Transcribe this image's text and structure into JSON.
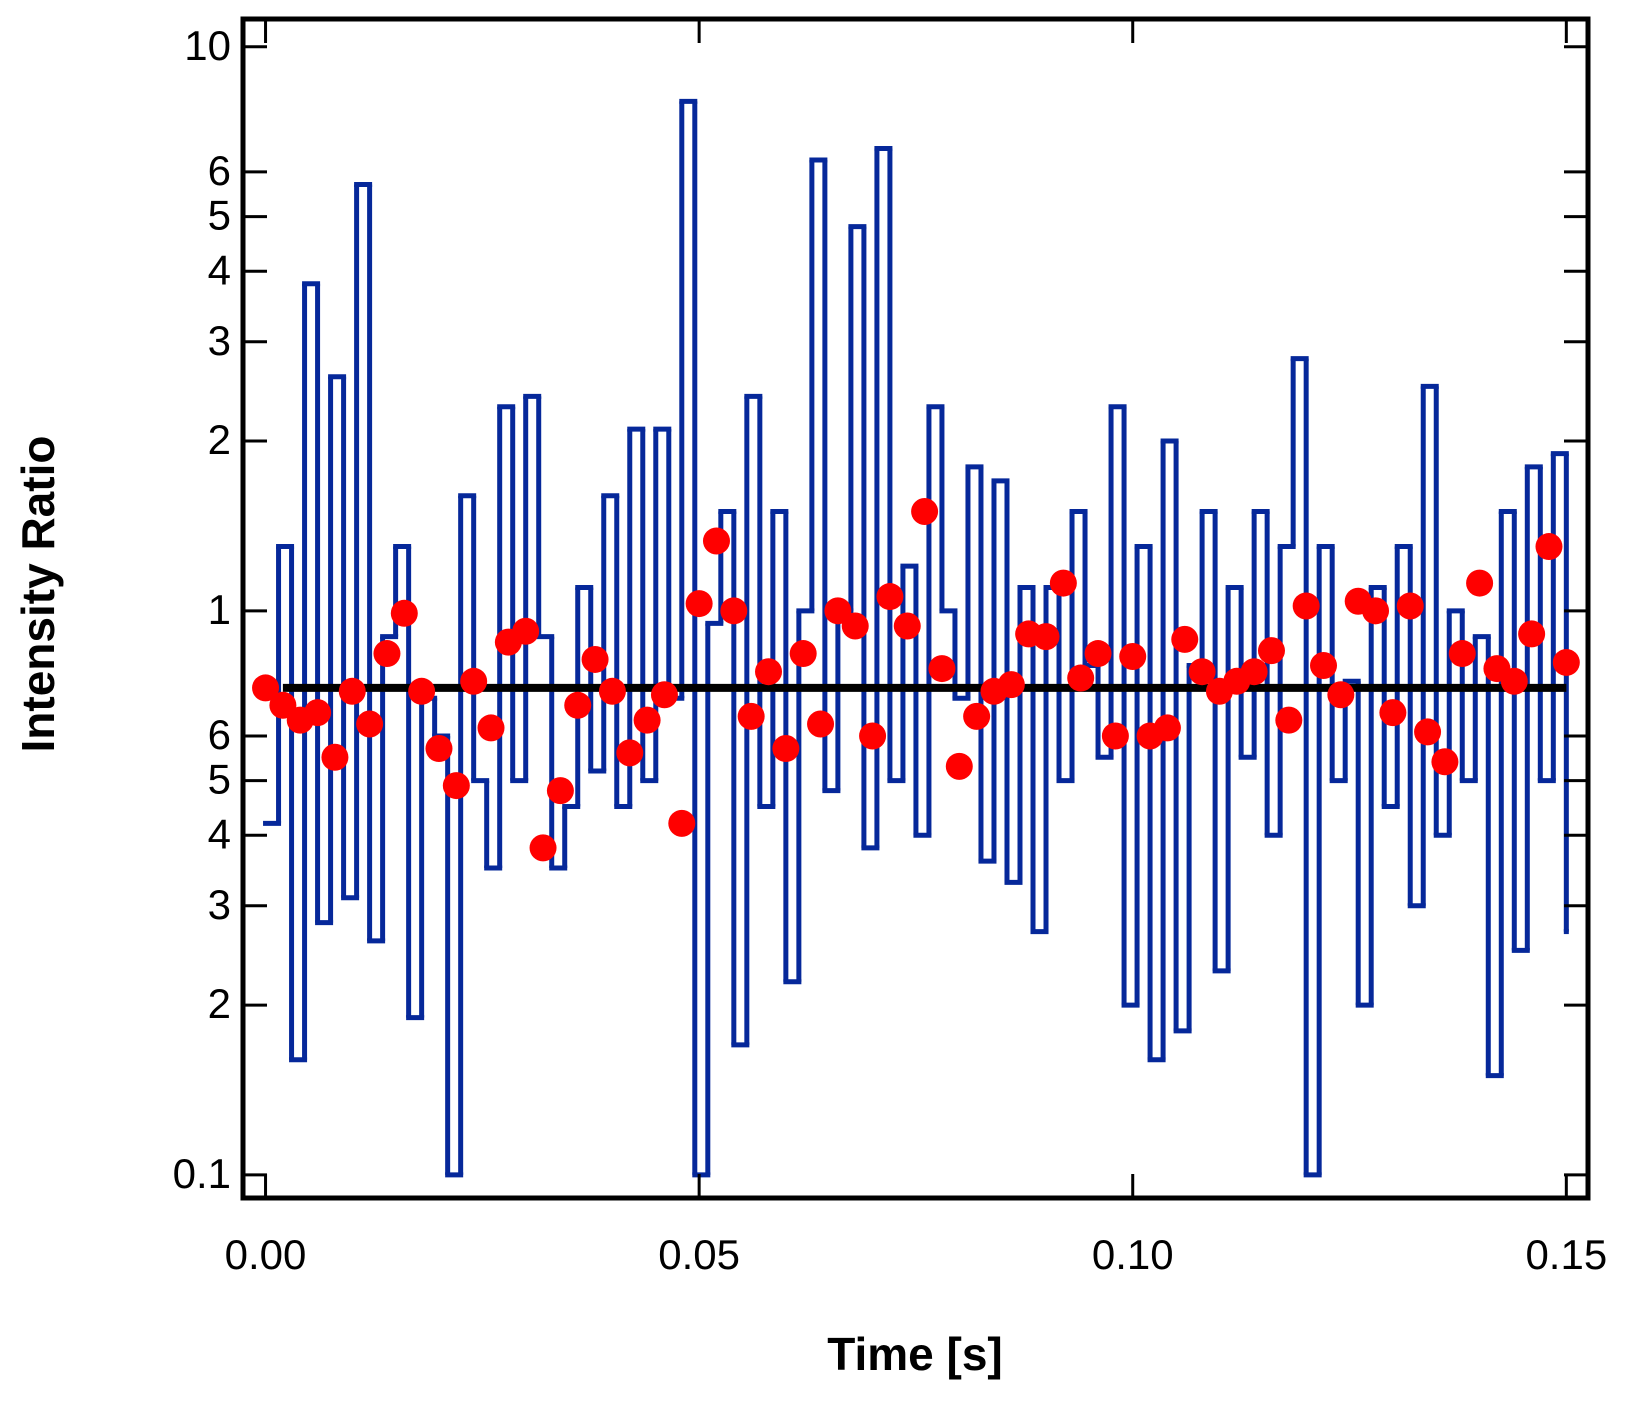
{
  "chart_data": {
    "type": "step-scatter",
    "x_label": "Time [s]",
    "y_label": "Intensity Ratio",
    "xlim": [
      -0.0026,
      0.1525
    ],
    "ylim": [
      0.091,
      11.2
    ],
    "yscale": "log",
    "xticks": [
      {
        "value": 0,
        "label": "0.00"
      },
      {
        "value": 0.05,
        "label": "0.05"
      },
      {
        "value": 0.1,
        "label": "0.10"
      },
      {
        "value": 0.15,
        "label": "0.15"
      }
    ],
    "yticks": [
      {
        "value": 0.1,
        "label": "0.1"
      },
      {
        "value": 0.2,
        "label": "2"
      },
      {
        "value": 0.3,
        "label": "3"
      },
      {
        "value": 0.4,
        "label": "4"
      },
      {
        "value": 0.5,
        "label": "5"
      },
      {
        "value": 0.6,
        "label": "6"
      },
      1,
      2,
      3,
      4,
      5,
      6,
      10
    ],
    "series": [
      {
        "name": "trace",
        "kind": "step",
        "color": "#06289a",
        "x": [
          0,
          0.0015,
          0.003,
          0.0045,
          0.006,
          0.0075,
          0.009,
          0.0105,
          0.012,
          0.0135,
          0.015,
          0.0165,
          0.018,
          0.0195,
          0.021,
          0.0225,
          0.024,
          0.0255,
          0.027,
          0.0285,
          0.03,
          0.0315,
          0.033,
          0.0345,
          0.036,
          0.0375,
          0.039,
          0.0405,
          0.042,
          0.0435,
          0.045,
          0.0465,
          0.048,
          0.0495,
          0.051,
          0.0525,
          0.054,
          0.0555,
          0.057,
          0.0585,
          0.06,
          0.0615,
          0.063,
          0.0645,
          0.066,
          0.0675,
          0.069,
          0.0705,
          0.072,
          0.0735,
          0.075,
          0.0765,
          0.078,
          0.0795,
          0.081,
          0.0825,
          0.084,
          0.0855,
          0.087,
          0.0885,
          0.09,
          0.0915,
          0.093,
          0.0945,
          0.096,
          0.0975,
          0.099,
          0.1005,
          0.102,
          0.1035,
          0.105,
          0.1065,
          0.108,
          0.1095,
          0.111,
          0.1125,
          0.114,
          0.1155,
          0.117,
          0.1185,
          0.12,
          0.1215,
          0.123,
          0.1245,
          0.126,
          0.1275,
          0.129,
          0.1305,
          0.132,
          0.1335,
          0.135,
          0.1365,
          0.138,
          0.1395,
          0.141,
          0.1425,
          0.144,
          0.1455,
          0.147,
          0.1485,
          0.15
        ],
        "values": [
          0.42,
          1.3,
          0.16,
          3.8,
          0.28,
          2.6,
          0.31,
          5.7,
          0.26,
          0.9,
          1.3,
          0.19,
          0.7,
          0.6,
          0.1,
          1.6,
          0.5,
          0.35,
          2.3,
          0.5,
          2.4,
          0.9,
          0.35,
          0.45,
          1.1,
          0.52,
          1.6,
          0.45,
          2.1,
          0.5,
          2.1,
          0.7,
          8.0,
          0.1,
          0.95,
          1.5,
          0.17,
          2.4,
          0.45,
          1.5,
          0.22,
          1.0,
          6.3,
          0.48,
          1.0,
          4.8,
          0.38,
          6.6,
          0.5,
          1.2,
          0.4,
          2.3,
          1.0,
          0.7,
          1.8,
          0.36,
          1.7,
          0.33,
          1.1,
          0.27,
          1.1,
          0.5,
          1.5,
          0.8,
          0.55,
          2.3,
          0.2,
          1.3,
          0.16,
          2.0,
          0.18,
          0.8,
          1.5,
          0.23,
          1.1,
          0.55,
          1.5,
          0.4,
          1.3,
          2.8,
          0.1,
          1.3,
          0.5,
          0.75,
          0.2,
          1.1,
          0.45,
          1.3,
          0.3,
          2.5,
          0.4,
          1.0,
          0.5,
          0.9,
          0.15,
          1.5,
          0.25,
          1.8,
          0.5,
          1.9,
          0.27
        ]
      },
      {
        "name": "mean",
        "kind": "line",
        "color": "#000000",
        "x": [
          0.002,
          0.15
        ],
        "values": [
          0.73,
          0.73
        ]
      },
      {
        "name": "points",
        "kind": "scatter",
        "color": "#ff0000",
        "x": [
          0,
          0.002,
          0.004,
          0.006,
          0.008,
          0.01,
          0.012,
          0.014,
          0.016,
          0.018,
          0.02,
          0.022,
          0.024,
          0.026,
          0.028,
          0.03,
          0.032,
          0.034,
          0.036,
          0.038,
          0.04,
          0.042,
          0.044,
          0.046,
          0.048,
          0.05,
          0.052,
          0.054,
          0.056,
          0.058,
          0.06,
          0.062,
          0.064,
          0.066,
          0.068,
          0.07,
          0.072,
          0.074,
          0.076,
          0.078,
          0.08,
          0.082,
          0.084,
          0.086,
          0.088,
          0.09,
          0.092,
          0.094,
          0.096,
          0.098,
          0.1,
          0.102,
          0.104,
          0.106,
          0.108,
          0.11,
          0.112,
          0.114,
          0.116,
          0.118,
          0.12,
          0.122,
          0.124,
          0.126,
          0.128,
          0.13,
          0.132,
          0.134,
          0.136,
          0.138,
          0.14,
          0.142,
          0.144,
          0.146,
          0.148,
          0.15
        ],
        "values": [
          0.73,
          0.68,
          0.64,
          0.66,
          0.55,
          0.72,
          0.63,
          0.84,
          0.99,
          0.72,
          0.57,
          0.49,
          0.75,
          0.62,
          0.88,
          0.92,
          0.38,
          0.48,
          0.68,
          0.82,
          0.72,
          0.56,
          0.64,
          0.71,
          0.42,
          1.03,
          1.33,
          1.0,
          0.65,
          0.78,
          0.57,
          0.84,
          0.63,
          1.0,
          0.94,
          0.6,
          1.06,
          0.94,
          1.5,
          0.79,
          0.53,
          0.65,
          0.72,
          0.74,
          0.91,
          0.9,
          1.12,
          0.76,
          0.84,
          0.6,
          0.83,
          0.6,
          0.62,
          0.89,
          0.78,
          0.72,
          0.75,
          0.78,
          0.85,
          0.64,
          1.02,
          0.8,
          0.71,
          1.04,
          1.0,
          0.66,
          1.02,
          0.61,
          0.54,
          0.84,
          1.12,
          0.79,
          0.75,
          0.91,
          1.3,
          0.81
        ]
      }
    ]
  }
}
